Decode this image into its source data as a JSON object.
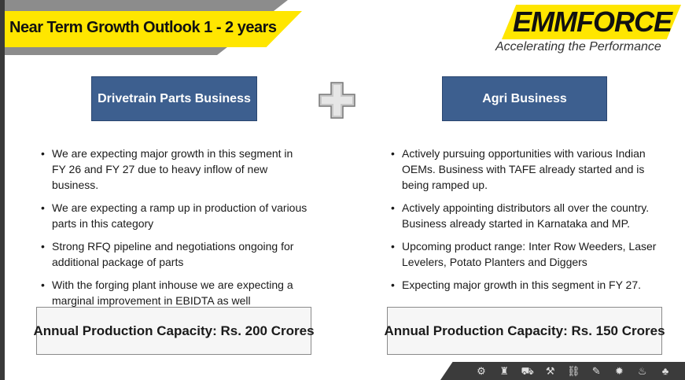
{
  "header": {
    "title": "Near Term Growth Outlook 1 - 2 years",
    "logo_text": "EMMFORCE",
    "tagline": "Accelerating the Performance"
  },
  "left_column": {
    "heading": "Drivetrain Parts Business",
    "bullets": [
      "We are expecting major growth in this segment in FY 26 and FY 27 due to heavy inflow of new business.",
      "We are expecting a ramp up in production of various parts in this category",
      "Strong RFQ pipeline and negotiations ongoing for additional package of parts",
      "With the forging plant inhouse we are expecting a marginal improvement in EBIDTA as well"
    ],
    "capacity": "Annual Production Capacity: Rs. 200 Crores"
  },
  "right_column": {
    "heading": "Agri Business",
    "bullets": [
      "Actively pursuing opportunities with various Indian OEMs. Business with TAFE already started and is being ramped up.",
      "Actively appointing distributors all over the country. Business already started in Karnataka and MP.",
      "Upcoming product range: Inter Row Weeders, Laser Levelers, Potato Planters and Diggers",
      "Expecting major growth in this segment in FY 27."
    ],
    "capacity": "Annual Production Capacity: Rs. 150 Crores"
  },
  "connector_icon": "plus-icon",
  "footer_icons": [
    "gear-icon",
    "piston-icon",
    "tractor-icon",
    "tool-icon",
    "chain-icon",
    "wrench-icon",
    "cog-icon",
    "engine-icon",
    "plant-icon"
  ],
  "colors": {
    "accent_yellow": "#ffe600",
    "box_blue": "#3d5f8f",
    "band_dark": "#3b3b3b"
  }
}
